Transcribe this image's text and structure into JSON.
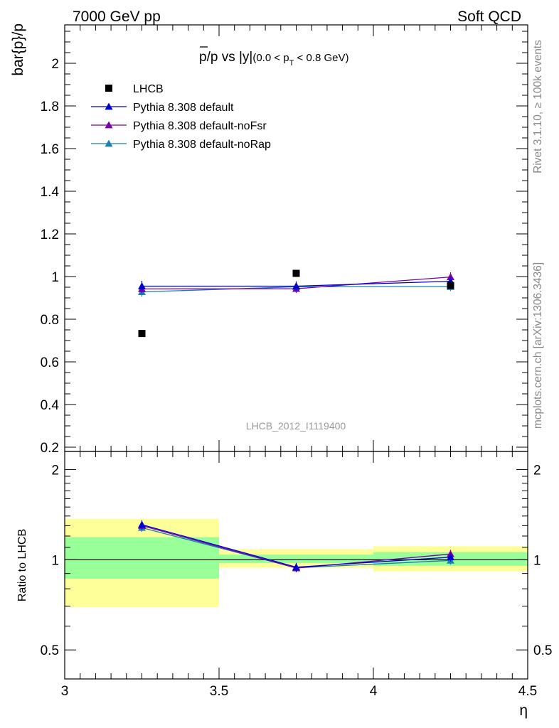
{
  "header": {
    "left": "7000 GeV pp",
    "right": "Soft QCD"
  },
  "side_labels": {
    "rivet": "Rivet 3.1.10, ≥ 100k events",
    "mcplots": "mcplots.cern.ch [arXiv:1306.3436]"
  },
  "chart_data": [
    {
      "type": "scatter",
      "panel": "main",
      "title": "p̅/p vs |y|",
      "title_main": "p/p vs |y|",
      "title_cut_pre": "(0.0 < p",
      "title_cut_sub": "T",
      "title_cut_post": " < 0.8 GeV)",
      "ylabel": "bar{p}/p",
      "xlabel": "",
      "xlim": [
        3.0,
        4.5
      ],
      "ylim": [
        0.18,
        2.18
      ],
      "y_ticks": [
        0.2,
        0.4,
        0.6,
        0.8,
        1,
        1.2,
        1.4,
        1.6,
        1.8,
        2
      ],
      "y_tick_labels": [
        "0.2",
        "0.4",
        "0.6",
        "0.8",
        "1",
        "1.2",
        "1.4",
        "1.6",
        "1.8",
        "2"
      ],
      "watermark": "LHCB_2012_I1119400",
      "legend_position": "top-left",
      "x": [
        3.25,
        3.75,
        4.25
      ],
      "series": [
        {
          "name": "LHCB",
          "color": "#000000",
          "marker": "square",
          "values": [
            0.733,
            1.015,
            0.958
          ]
        },
        {
          "name": "Pythia 8.308 default",
          "color": "#0000cc",
          "marker": "triangle",
          "values": [
            0.955,
            0.955,
            0.978
          ],
          "errors": [
            0.025,
            0.022,
            0.02
          ]
        },
        {
          "name": "Pythia 8.308 default-noFsr",
          "color": "#7700aa",
          "marker": "triangle",
          "values": [
            0.942,
            0.943,
            0.998
          ],
          "errors": [
            0.022,
            0.02,
            0.022
          ]
        },
        {
          "name": "Pythia 8.308 default-noRap",
          "color": "#1a80b0",
          "marker": "triangle",
          "values": [
            0.928,
            0.952,
            0.952
          ],
          "errors": [
            0.022,
            0.02,
            0.02
          ]
        }
      ]
    },
    {
      "type": "line",
      "panel": "ratio",
      "ylabel": "Ratio to LHCB",
      "xlabel": "η",
      "xlim": [
        3.0,
        4.5
      ],
      "ylim": [
        0.4,
        2.3
      ],
      "y_scale": "log",
      "y_ticks": [
        0.5,
        1,
        2
      ],
      "y_tick_labels": [
        "0.5",
        "1",
        "2"
      ],
      "x_ticks": [
        3,
        3.5,
        4,
        4.5
      ],
      "x_tick_labels": [
        "3",
        "3.5",
        "4",
        "4.5"
      ],
      "reference_line": 1,
      "bands": [
        {
          "x0": 3.0,
          "x1": 3.5,
          "inner": [
            0.865,
            1.19
          ],
          "outer": [
            0.695,
            1.37
          ]
        },
        {
          "x0": 3.5,
          "x1": 4.0,
          "inner": [
            0.975,
            1.04
          ],
          "outer": [
            0.94,
            1.085
          ]
        },
        {
          "x0": 4.0,
          "x1": 4.5,
          "inner": [
            0.955,
            1.06
          ],
          "outer": [
            0.915,
            1.11
          ]
        }
      ],
      "band_colors": {
        "inner": "#99ff99",
        "outer": "#ffff99"
      },
      "x": [
        3.25,
        3.75,
        4.25
      ],
      "series": [
        {
          "name": "Pythia 8.308 default",
          "color": "#0000cc",
          "values": [
            1.31,
            0.945,
            1.02
          ]
        },
        {
          "name": "Pythia 8.308 default-noFsr",
          "color": "#7700aa",
          "values": [
            1.3,
            0.938,
            1.045
          ]
        },
        {
          "name": "Pythia 8.308 default-noRap",
          "color": "#1a80b0",
          "values": [
            1.28,
            0.94,
            0.995
          ]
        }
      ]
    }
  ]
}
